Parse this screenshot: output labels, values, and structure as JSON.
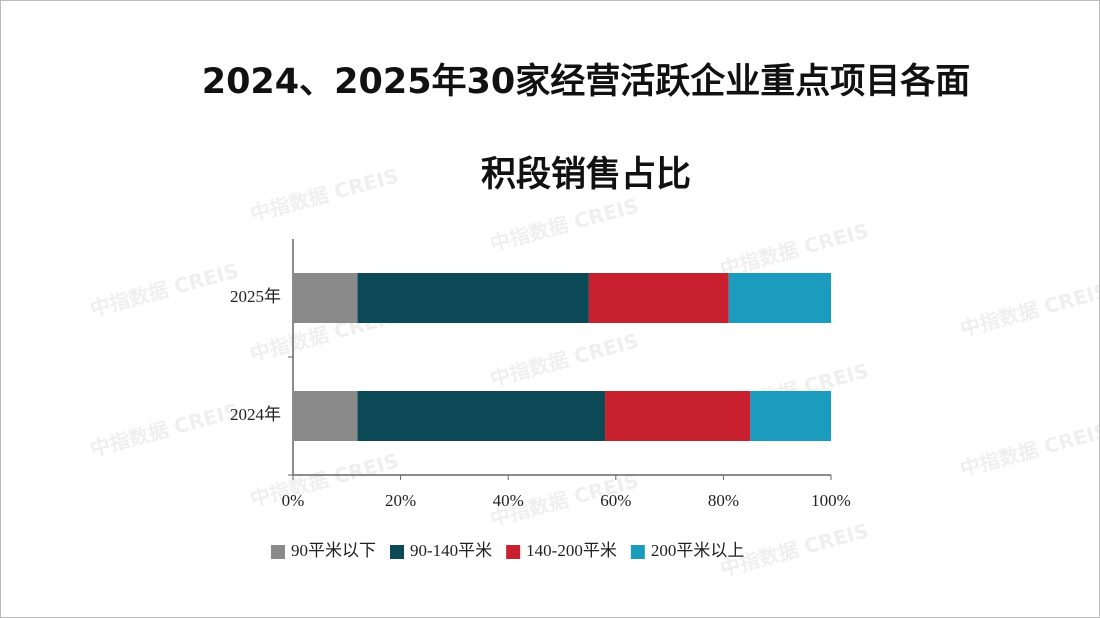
{
  "chart_data": {
    "type": "stacked-barh",
    "title": "2024、2025年30家经营活跃企业重点项目各面积段销售占比",
    "watermark": "中指数据 CREIS",
    "categories": [
      "2025年",
      "2024年"
    ],
    "series": [
      {
        "name": "90平米以下",
        "color": "#8a8a8a",
        "values": [
          12,
          12
        ]
      },
      {
        "name": "90-140平米",
        "color": "#0d4a58",
        "values": [
          43,
          46
        ]
      },
      {
        "name": "140-200平米",
        "color": "#c8202f",
        "values": [
          26,
          27
        ]
      },
      {
        "name": "200平米以上",
        "color": "#1b9cbf",
        "values": [
          19,
          15
        ]
      }
    ],
    "xlim": [
      0,
      100
    ],
    "xticks": [
      {
        "value": 0,
        "label": "0%"
      },
      {
        "value": 20,
        "label": "20%"
      },
      {
        "value": 40,
        "label": "40%"
      },
      {
        "value": 60,
        "label": "60%"
      },
      {
        "value": 80,
        "label": "80%"
      },
      {
        "value": 100,
        "label": "100%"
      }
    ],
    "legend": "bottom"
  }
}
